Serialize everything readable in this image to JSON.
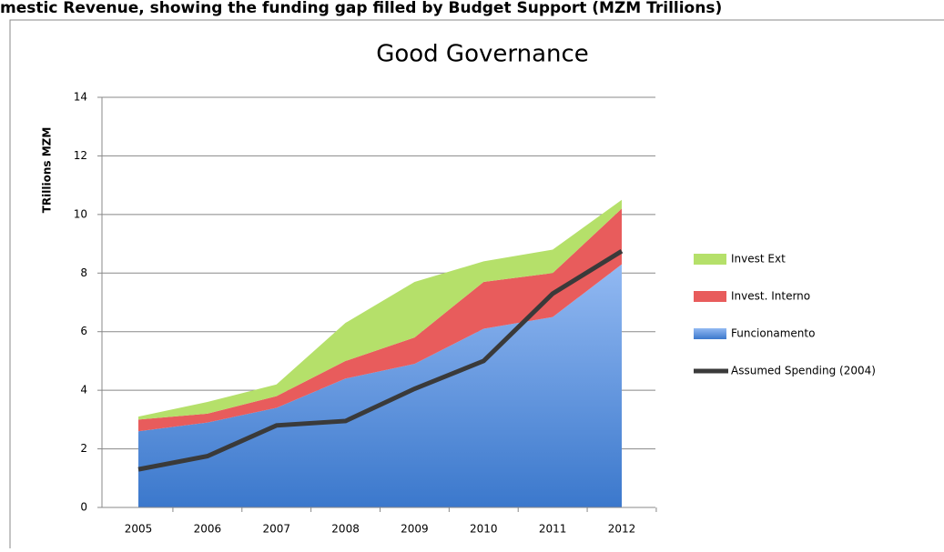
{
  "header": "mestic Revenue, showing the funding gap filled by Budget Support (MZM Trillions)",
  "chart_data": {
    "type": "stacked_area_line",
    "title": "Good Governance",
    "y_label": "TRillions MZM",
    "categories": [
      "2005",
      "2006",
      "2007",
      "2008",
      "2009",
      "2010",
      "2011",
      "2012"
    ],
    "series": [
      {
        "name": "Funcionamento",
        "color": "#5b93e0",
        "values": [
          2.6,
          2.9,
          3.4,
          4.4,
          4.9,
          6.1,
          6.5,
          8.3
        ]
      },
      {
        "name": "Invest. Interno",
        "color": "#e85c5c",
        "values": [
          0.4,
          0.3,
          0.4,
          0.6,
          0.9,
          1.6,
          1.5,
          1.9
        ]
      },
      {
        "name": "Invest Ext",
        "color": "#b5e06a",
        "values": [
          0.1,
          0.4,
          0.4,
          1.3,
          1.9,
          0.7,
          0.8,
          0.3
        ]
      }
    ],
    "line": {
      "name": "Assumed Spending (2004)",
      "color": "#3a3a3a",
      "values": [
        1.3,
        1.75,
        2.8,
        2.95,
        4.05,
        5.0,
        7.3,
        8.75
      ]
    },
    "legend_order": [
      2,
      1,
      0
    ],
    "ylim": [
      0,
      14
    ],
    "yticks": [
      0,
      2,
      4,
      6,
      8,
      10,
      12,
      14
    ],
    "grid": true
  }
}
